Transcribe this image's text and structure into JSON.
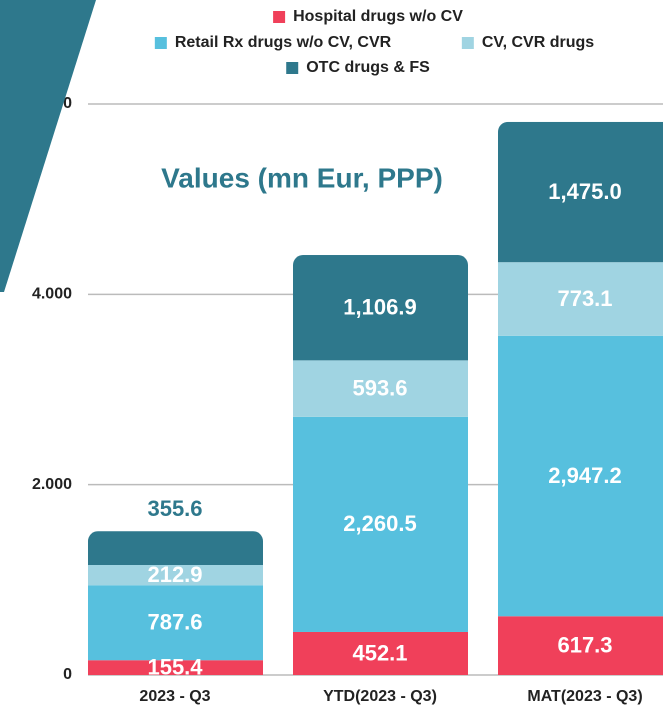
{
  "chart_data": {
    "type": "stacked-bar",
    "title": "Values (mn Eur, PPP)",
    "categories": [
      "2023 - Q3",
      "YTD(2023 - Q3)",
      "MAT(2023 - Q3)"
    ],
    "series": [
      {
        "name": "Hospital drugs w/o CV",
        "color": "#f0405a",
        "values": [
          155.4,
          452.1,
          617.3
        ],
        "value_labels": [
          "155.4",
          "452.1",
          "617.3"
        ]
      },
      {
        "name": "Retail Rx drugs w/o CV, CVR",
        "color": "#57c0de",
        "values": [
          787.6,
          2260.5,
          2947.2
        ],
        "value_labels": [
          "787.6",
          "2,260.5",
          "2,947.2"
        ]
      },
      {
        "name": "CV, CVR drugs",
        "color": "#a0d4e2",
        "values": [
          212.9,
          593.6,
          773.1
        ],
        "value_labels": [
          "212.9",
          "593.6",
          "773.1"
        ]
      },
      {
        "name": "OTC drugs & FS",
        "color": "#2e788c",
        "values": [
          355.6,
          1106.9,
          1475.0
        ],
        "value_labels": [
          "355.6",
          "1,106.9",
          "1,475.0"
        ]
      }
    ],
    "ylim": [
      0,
      6000
    ],
    "yticks": [
      0,
      {
        "value": 2000,
        "label": "2.000"
      },
      {
        "value": 4000,
        "label": "4.000"
      },
      {
        "value": 6000,
        "label": "6.000"
      }
    ],
    "grid": true
  }
}
